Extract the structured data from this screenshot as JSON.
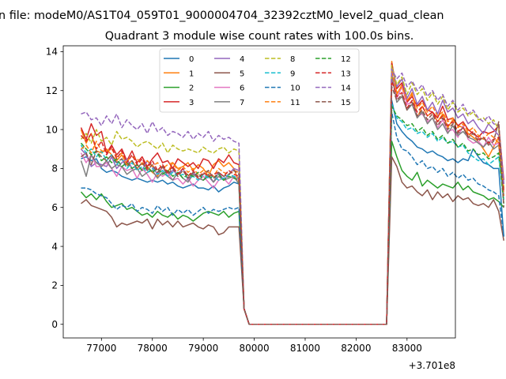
{
  "figure": {
    "suptitle": "n file: modeM0/AS1T04_059T01_9000004704_32392cztM0_level2_quad_clean",
    "offset_text": "+3.701e8"
  },
  "chart_data": {
    "type": "line",
    "title": "Quadrant 3 module wise count rates with 100.0s bins.",
    "xlabel": "",
    "ylabel": "",
    "x_offset": 370100000,
    "xlim": [
      76250,
      83950
    ],
    "ylim": [
      -0.7,
      14.3
    ],
    "x_ticks": [
      77000,
      78000,
      79000,
      80000,
      81000,
      82000,
      83000
    ],
    "x_tick_labels": [
      "77000",
      "78000",
      "79000",
      "80000",
      "81000",
      "82000",
      "83000"
    ],
    "y_ticks": [
      0,
      2,
      4,
      6,
      8,
      10,
      12,
      14
    ],
    "y_tick_labels": [
      "0",
      "2",
      "4",
      "6",
      "8",
      "10",
      "12",
      "14"
    ],
    "grid": false,
    "legend_position": "top-center",
    "x_start": 76600,
    "x_step": 100,
    "series": [
      {
        "name": "0",
        "color": "#1f77b4",
        "dash": "solid",
        "seg1": [
          8.5,
          8.6,
          8.4,
          8.5,
          8.0,
          7.8,
          7.9,
          7.8,
          7.6,
          7.5,
          7.4,
          7.5,
          7.4,
          7.3,
          7.4,
          7.3,
          7.4,
          7.2,
          7.3,
          7.1,
          7.0,
          7.1,
          7.2,
          7.0,
          7.0,
          6.9,
          7.1,
          6.8,
          7.0,
          7.1,
          7.3,
          7.2
        ],
        "seg2": [
          11.5,
          10.3,
          9.9,
          9.6,
          9.4,
          9.1,
          9.0,
          8.8,
          8.9,
          8.7,
          8.6,
          8.4,
          8.5,
          8.3,
          8.5,
          8.4,
          9.0,
          8.6,
          8.3,
          8.2,
          8.0,
          8.0,
          4.5
        ]
      },
      {
        "name": "1",
        "color": "#ff7f0e",
        "dash": "solid",
        "seg1": [
          10.0,
          9.3,
          9.8,
          8.9,
          8.8,
          9.0,
          8.7,
          8.4,
          8.7,
          8.2,
          8.4,
          8.0,
          8.3,
          8.1,
          7.8,
          7.6,
          8.1,
          7.8,
          8.3,
          8.0,
          8.1,
          8.3,
          7.9,
          8.2,
          8.0,
          7.6,
          8.2,
          8.4,
          8.1,
          8.3,
          8.0,
          7.3
        ],
        "seg2": [
          13.5,
          11.8,
          12.3,
          11.4,
          11.9,
          10.6,
          11.2,
          10.7,
          10.9,
          10.4,
          10.8,
          10.1,
          10.5,
          10.2,
          10.1,
          9.8,
          9.6,
          9.4,
          9.0,
          8.6,
          9.1,
          9.6,
          6.9
        ]
      },
      {
        "name": "2",
        "color": "#2ca02c",
        "dash": "solid",
        "seg1": [
          6.8,
          6.5,
          6.7,
          6.4,
          6.7,
          6.3,
          6.0,
          6.1,
          6.2,
          5.9,
          6.0,
          5.8,
          5.6,
          5.7,
          5.5,
          5.8,
          5.6,
          5.5,
          5.7,
          5.4,
          5.6,
          5.5,
          5.3,
          5.5,
          5.7,
          5.8,
          5.7,
          5.6,
          5.8,
          5.5,
          5.7,
          5.8
        ],
        "seg2": [
          9.4,
          8.6,
          7.9,
          7.6,
          7.4,
          7.8,
          7.1,
          7.4,
          7.2,
          7.0,
          7.2,
          7.1,
          7.0,
          7.3,
          6.9,
          7.1,
          6.8,
          6.7,
          6.6,
          6.4,
          6.5,
          6.3,
          6.0
        ]
      },
      {
        "name": "3",
        "color": "#d62728",
        "dash": "solid",
        "seg1": [
          10.1,
          9.5,
          10.3,
          9.7,
          9.9,
          8.8,
          9.2,
          8.7,
          9.0,
          8.4,
          8.9,
          8.3,
          8.6,
          8.1,
          8.5,
          8.8,
          8.3,
          8.4,
          8.0,
          8.5,
          8.3,
          8.1,
          8.3,
          8.0,
          8.5,
          8.4,
          8.0,
          8.5,
          8.3,
          8.7,
          8.3,
          8.2
        ],
        "seg2": [
          13.4,
          12.1,
          12.4,
          11.4,
          11.7,
          11.2,
          11.5,
          11.0,
          10.9,
          10.6,
          11.2,
          10.5,
          10.6,
          10.2,
          10.4,
          10.0,
          9.8,
          9.6,
          9.9,
          9.8,
          9.9,
          10.2,
          7.4
        ]
      },
      {
        "name": "4",
        "color": "#9467bd",
        "dash": "solid",
        "seg1": [
          9.0,
          8.7,
          8.1,
          8.3,
          8.2,
          8.1,
          8.6,
          8.0,
          8.3,
          8.5,
          8.0,
          8.2,
          7.9,
          8.4,
          8.1,
          7.7,
          8.1,
          7.6,
          7.9,
          7.7,
          8.0,
          7.4,
          7.8,
          7.5,
          7.4,
          7.6,
          7.3,
          7.8,
          7.4,
          7.7,
          8.0,
          7.9
        ],
        "seg2": [
          13.2,
          12.2,
          12.6,
          11.6,
          12.1,
          11.3,
          11.7,
          11.0,
          11.4,
          10.8,
          11.5,
          10.9,
          11.1,
          10.6,
          10.8,
          10.3,
          10.5,
          10.1,
          9.8,
          10.3,
          10.0,
          9.7,
          7.2
        ]
      },
      {
        "name": "5",
        "color": "#8c564b",
        "dash": "solid",
        "seg1": [
          6.2,
          6.4,
          6.1,
          6.0,
          5.9,
          5.8,
          5.5,
          5.0,
          5.2,
          5.1,
          5.2,
          5.3,
          5.2,
          5.4,
          4.9,
          5.4,
          5.1,
          5.3,
          5.0,
          5.3,
          5.0,
          5.1,
          5.2,
          5.0,
          4.9,
          5.1,
          5.0,
          4.6,
          4.7,
          5.0,
          5.0,
          5.0
        ],
        "seg2": [
          8.6,
          8.1,
          7.3,
          7.0,
          7.1,
          6.8,
          6.6,
          6.9,
          6.4,
          6.8,
          6.5,
          6.7,
          6.3,
          6.6,
          6.4,
          6.5,
          6.2,
          6.1,
          6.2,
          6.0,
          6.4,
          5.8,
          4.3
        ]
      },
      {
        "name": "6",
        "color": "#e377c2",
        "dash": "solid",
        "seg1": [
          8.8,
          8.3,
          8.7,
          8.1,
          8.1,
          8.3,
          8.0,
          7.6,
          8.1,
          7.9,
          8.0,
          7.5,
          8.0,
          7.7,
          7.3,
          7.8,
          7.6,
          7.8,
          7.4,
          7.5,
          7.2,
          7.5,
          7.1,
          7.4,
          7.6,
          7.3,
          7.0,
          7.4,
          7.5,
          7.2,
          7.6,
          7.4
        ],
        "seg2": [
          12.9,
          11.6,
          12.2,
          11.3,
          11.4,
          10.7,
          10.8,
          10.4,
          10.6,
          10.1,
          10.5,
          9.9,
          10.0,
          9.6,
          10.2,
          9.5,
          9.3,
          9.4,
          9.1,
          9.6,
          9.2,
          9.3,
          6.8
        ]
      },
      {
        "name": "7",
        "color": "#7f7f7f",
        "dash": "solid",
        "seg1": [
          8.4,
          7.6,
          8.7,
          8.3,
          8.1,
          8.4,
          8.0,
          8.2,
          8.1,
          7.7,
          7.9,
          8.0,
          7.6,
          7.8,
          7.9,
          7.5,
          7.8,
          7.6,
          7.4,
          7.8,
          7.5,
          7.3,
          7.7,
          7.5,
          7.4,
          7.7,
          7.3,
          7.6,
          7.4,
          7.5,
          7.6,
          7.2
        ],
        "seg2": [
          12.8,
          11.4,
          11.7,
          11.0,
          11.3,
          10.6,
          10.9,
          10.3,
          10.6,
          10.0,
          10.3,
          9.8,
          10.2,
          9.7,
          9.9,
          9.6,
          9.5,
          9.3,
          9.1,
          9.4,
          9.0,
          9.2,
          6.6
        ]
      },
      {
        "name": "8",
        "color": "#bcbd22",
        "dash": "dashed",
        "seg1": [
          9.5,
          9.8,
          9.3,
          10.0,
          9.4,
          9.6,
          9.2,
          9.9,
          9.5,
          9.6,
          9.4,
          9.1,
          9.3,
          9.4,
          9.2,
          9.0,
          9.3,
          8.8,
          9.2,
          9.0,
          8.9,
          9.0,
          8.9,
          8.8,
          9.1,
          8.9,
          8.8,
          9.0,
          9.1,
          8.8,
          9.0,
          8.9
        ],
        "seg2": [
          13.3,
          12.3,
          12.7,
          11.8,
          12.4,
          11.8,
          12.1,
          11.5,
          11.9,
          11.3,
          11.7,
          11.0,
          11.4,
          10.9,
          11.1,
          10.7,
          10.9,
          10.5,
          10.6,
          10.3,
          10.5,
          10.0,
          7.0
        ]
      },
      {
        "name": "9",
        "color": "#17becf",
        "dash": "dashed",
        "seg1": [
          9.2,
          8.8,
          9.0,
          8.6,
          8.9,
          8.4,
          8.7,
          8.2,
          8.5,
          8.0,
          8.3,
          7.9,
          8.1,
          7.8,
          8.0,
          7.7,
          7.9,
          7.6,
          7.8,
          7.6,
          7.7,
          7.5,
          7.6,
          7.4,
          7.7,
          7.5,
          7.6,
          7.4,
          7.5,
          7.7,
          7.6,
          7.5
        ],
        "seg2": [
          11.3,
          10.6,
          10.4,
          10.0,
          10.1,
          9.8,
          9.9,
          9.6,
          9.8,
          9.4,
          9.6,
          9.3,
          9.4,
          9.1,
          9.2,
          8.8,
          8.6,
          8.4,
          8.5,
          8.2,
          8.4,
          8.6,
          6.4
        ]
      },
      {
        "name": "10",
        "color": "#1f77b4",
        "dash": "dashed",
        "seg1": [
          7.0,
          7.0,
          6.9,
          6.7,
          6.6,
          6.5,
          6.2,
          5.9,
          6.1,
          6.0,
          6.2,
          5.8,
          6.0,
          5.9,
          5.7,
          6.1,
          5.8,
          6.0,
          5.6,
          5.9,
          5.7,
          5.9,
          5.6,
          5.8,
          6.0,
          5.7,
          5.9,
          5.8,
          5.9,
          6.0,
          5.9,
          6.0
        ],
        "seg2": [
          10.9,
          9.6,
          9.0,
          8.9,
          8.6,
          8.2,
          8.4,
          8.0,
          8.1,
          7.8,
          8.0,
          7.6,
          7.8,
          7.5,
          7.7,
          7.4,
          7.5,
          7.2,
          7.1,
          6.9,
          6.8,
          6.6,
          4.5
        ]
      },
      {
        "name": "11",
        "color": "#ff7f0e",
        "dash": "dashed",
        "seg1": [
          9.0,
          9.2,
          8.8,
          9.4,
          8.9,
          8.9,
          9.0,
          8.6,
          8.8,
          8.4,
          8.6,
          8.5,
          8.2,
          8.4,
          8.1,
          8.3,
          8.0,
          8.2,
          8.3,
          7.9,
          8.1,
          7.8,
          8.0,
          7.7,
          7.9,
          7.8,
          7.6,
          8.0,
          7.8,
          7.7,
          7.9,
          7.8
        ],
        "seg2": [
          13.0,
          11.9,
          12.2,
          11.5,
          11.8,
          11.1,
          11.4,
          10.9,
          11.2,
          10.7,
          10.9,
          10.4,
          10.6,
          10.1,
          10.3,
          9.9,
          10.1,
          9.7,
          9.5,
          9.8,
          9.6,
          9.3,
          6.6
        ]
      },
      {
        "name": "12",
        "color": "#2ca02c",
        "dash": "dashed",
        "seg1": [
          9.3,
          9.0,
          8.7,
          8.9,
          8.4,
          8.6,
          8.3,
          8.5,
          8.1,
          8.3,
          8.0,
          8.2,
          7.9,
          8.1,
          7.8,
          8.0,
          7.7,
          7.9,
          7.6,
          7.8,
          7.5,
          7.7,
          7.6,
          7.8,
          7.4,
          7.6,
          7.5,
          7.7,
          7.4,
          7.6,
          7.5,
          7.4
        ],
        "seg2": [
          11.2,
          10.7,
          10.5,
          10.2,
          10.3,
          9.9,
          10.1,
          9.7,
          9.9,
          9.5,
          9.7,
          9.3,
          9.5,
          9.1,
          9.3,
          8.9,
          9.0,
          8.7,
          8.8,
          8.5,
          8.6,
          8.8,
          6.2
        ]
      },
      {
        "name": "13",
        "color": "#d62728",
        "dash": "dashed",
        "seg1": [
          9.7,
          9.4,
          9.8,
          9.0,
          9.4,
          8.7,
          9.1,
          8.5,
          8.9,
          8.3,
          8.7,
          8.2,
          8.5,
          8.0,
          8.4,
          7.9,
          8.2,
          7.8,
          8.1,
          7.7,
          8.0,
          7.6,
          7.9,
          7.5,
          7.8,
          7.6,
          7.7,
          7.8,
          7.6,
          7.9,
          7.7,
          7.6
        ],
        "seg2": [
          12.5,
          11.7,
          11.9,
          11.1,
          11.5,
          10.9,
          11.2,
          10.7,
          10.9,
          10.4,
          10.7,
          10.2,
          10.4,
          9.9,
          10.1,
          9.7,
          9.9,
          9.5,
          9.6,
          9.3,
          9.5,
          9.6,
          6.8
        ]
      },
      {
        "name": "14",
        "color": "#9467bd",
        "dash": "dashed",
        "seg1": [
          10.8,
          10.9,
          10.5,
          10.6,
          10.2,
          10.7,
          10.3,
          10.8,
          10.1,
          10.5,
          10.2,
          10.0,
          10.3,
          9.8,
          10.4,
          9.9,
          10.1,
          9.7,
          9.9,
          9.8,
          9.6,
          9.9,
          9.5,
          9.8,
          9.6,
          9.9,
          9.4,
          9.7,
          9.5,
          9.6,
          9.4,
          9.3
        ],
        "seg2": [
          13.1,
          12.6,
          12.9,
          12.2,
          12.5,
          12.0,
          12.3,
          11.7,
          12.0,
          11.5,
          11.8,
          11.2,
          11.5,
          11.0,
          11.3,
          10.8,
          11.0,
          10.6,
          10.4,
          10.7,
          10.3,
          10.2,
          7.2
        ]
      },
      {
        "name": "15",
        "color": "#8c564b",
        "dash": "dashed",
        "seg1": [
          8.6,
          8.8,
          8.2,
          8.9,
          8.6,
          8.4,
          8.7,
          8.3,
          8.5,
          8.1,
          8.4,
          8.0,
          8.3,
          7.9,
          8.2,
          7.8,
          8.1,
          7.7,
          8.0,
          7.6,
          7.9,
          7.5,
          7.8,
          7.6,
          7.7,
          7.9,
          7.5,
          7.8,
          7.6,
          7.7,
          7.9,
          7.7
        ],
        "seg2": [
          12.2,
          11.5,
          11.8,
          11.0,
          11.4,
          10.7,
          11.0,
          10.5,
          10.8,
          10.2,
          10.6,
          10.0,
          10.3,
          9.8,
          10.1,
          9.6,
          9.8,
          9.4,
          9.6,
          9.2,
          9.4,
          10.4,
          6.0
        ]
      }
    ]
  }
}
